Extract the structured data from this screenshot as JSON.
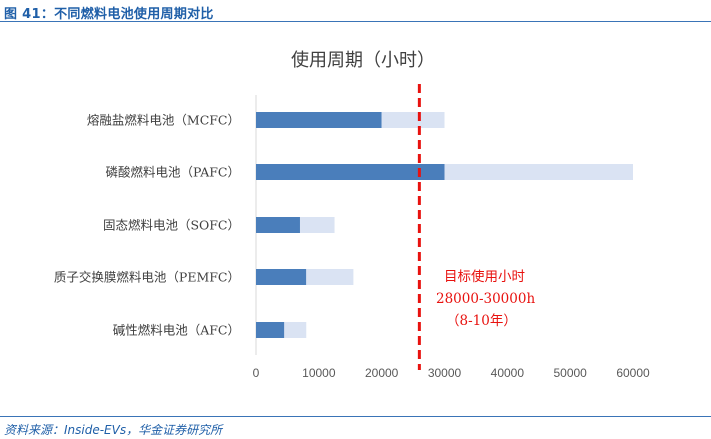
{
  "figure": {
    "label": "图 41：不同燃料电池使用周期对比",
    "source": "资料来源：Inside-EVs，华金证券研究所"
  },
  "colors": {
    "dark_bar": "#4a7ebb",
    "light_bar": "#dae3f3",
    "target_line": "#e8120f",
    "title_blue": "#1f5fa8"
  },
  "chart_data": {
    "type": "bar",
    "orientation": "horizontal",
    "stacked": true,
    "title": "使用周期（小时）",
    "categories": [
      "熔融盐燃料电池（MCFC）",
      "磷酸燃料电池（PAFC）",
      "固态燃料电池（SOFC）",
      "质子交换膜燃料电池（PEMFC）",
      "碱性燃料电池（AFC）"
    ],
    "series": [
      {
        "values": [
          20000,
          30000,
          7000,
          8000,
          4500
        ],
        "color": "#4a7ebb"
      },
      {
        "values": [
          10000,
          30000,
          5500,
          7500,
          3500
        ],
        "color": "#dae3f3"
      }
    ],
    "xlim": [
      0,
      60000
    ],
    "x_ticks": [
      "0",
      "10000",
      "20000",
      "30000",
      "40000",
      "50000",
      "60000"
    ],
    "grid": false,
    "reference_line": {
      "x": 26000,
      "style": "dashed",
      "color": "#e8120f"
    },
    "annotation": [
      "目标使用小时",
      "28000-30000h",
      "（8-10年）"
    ]
  }
}
